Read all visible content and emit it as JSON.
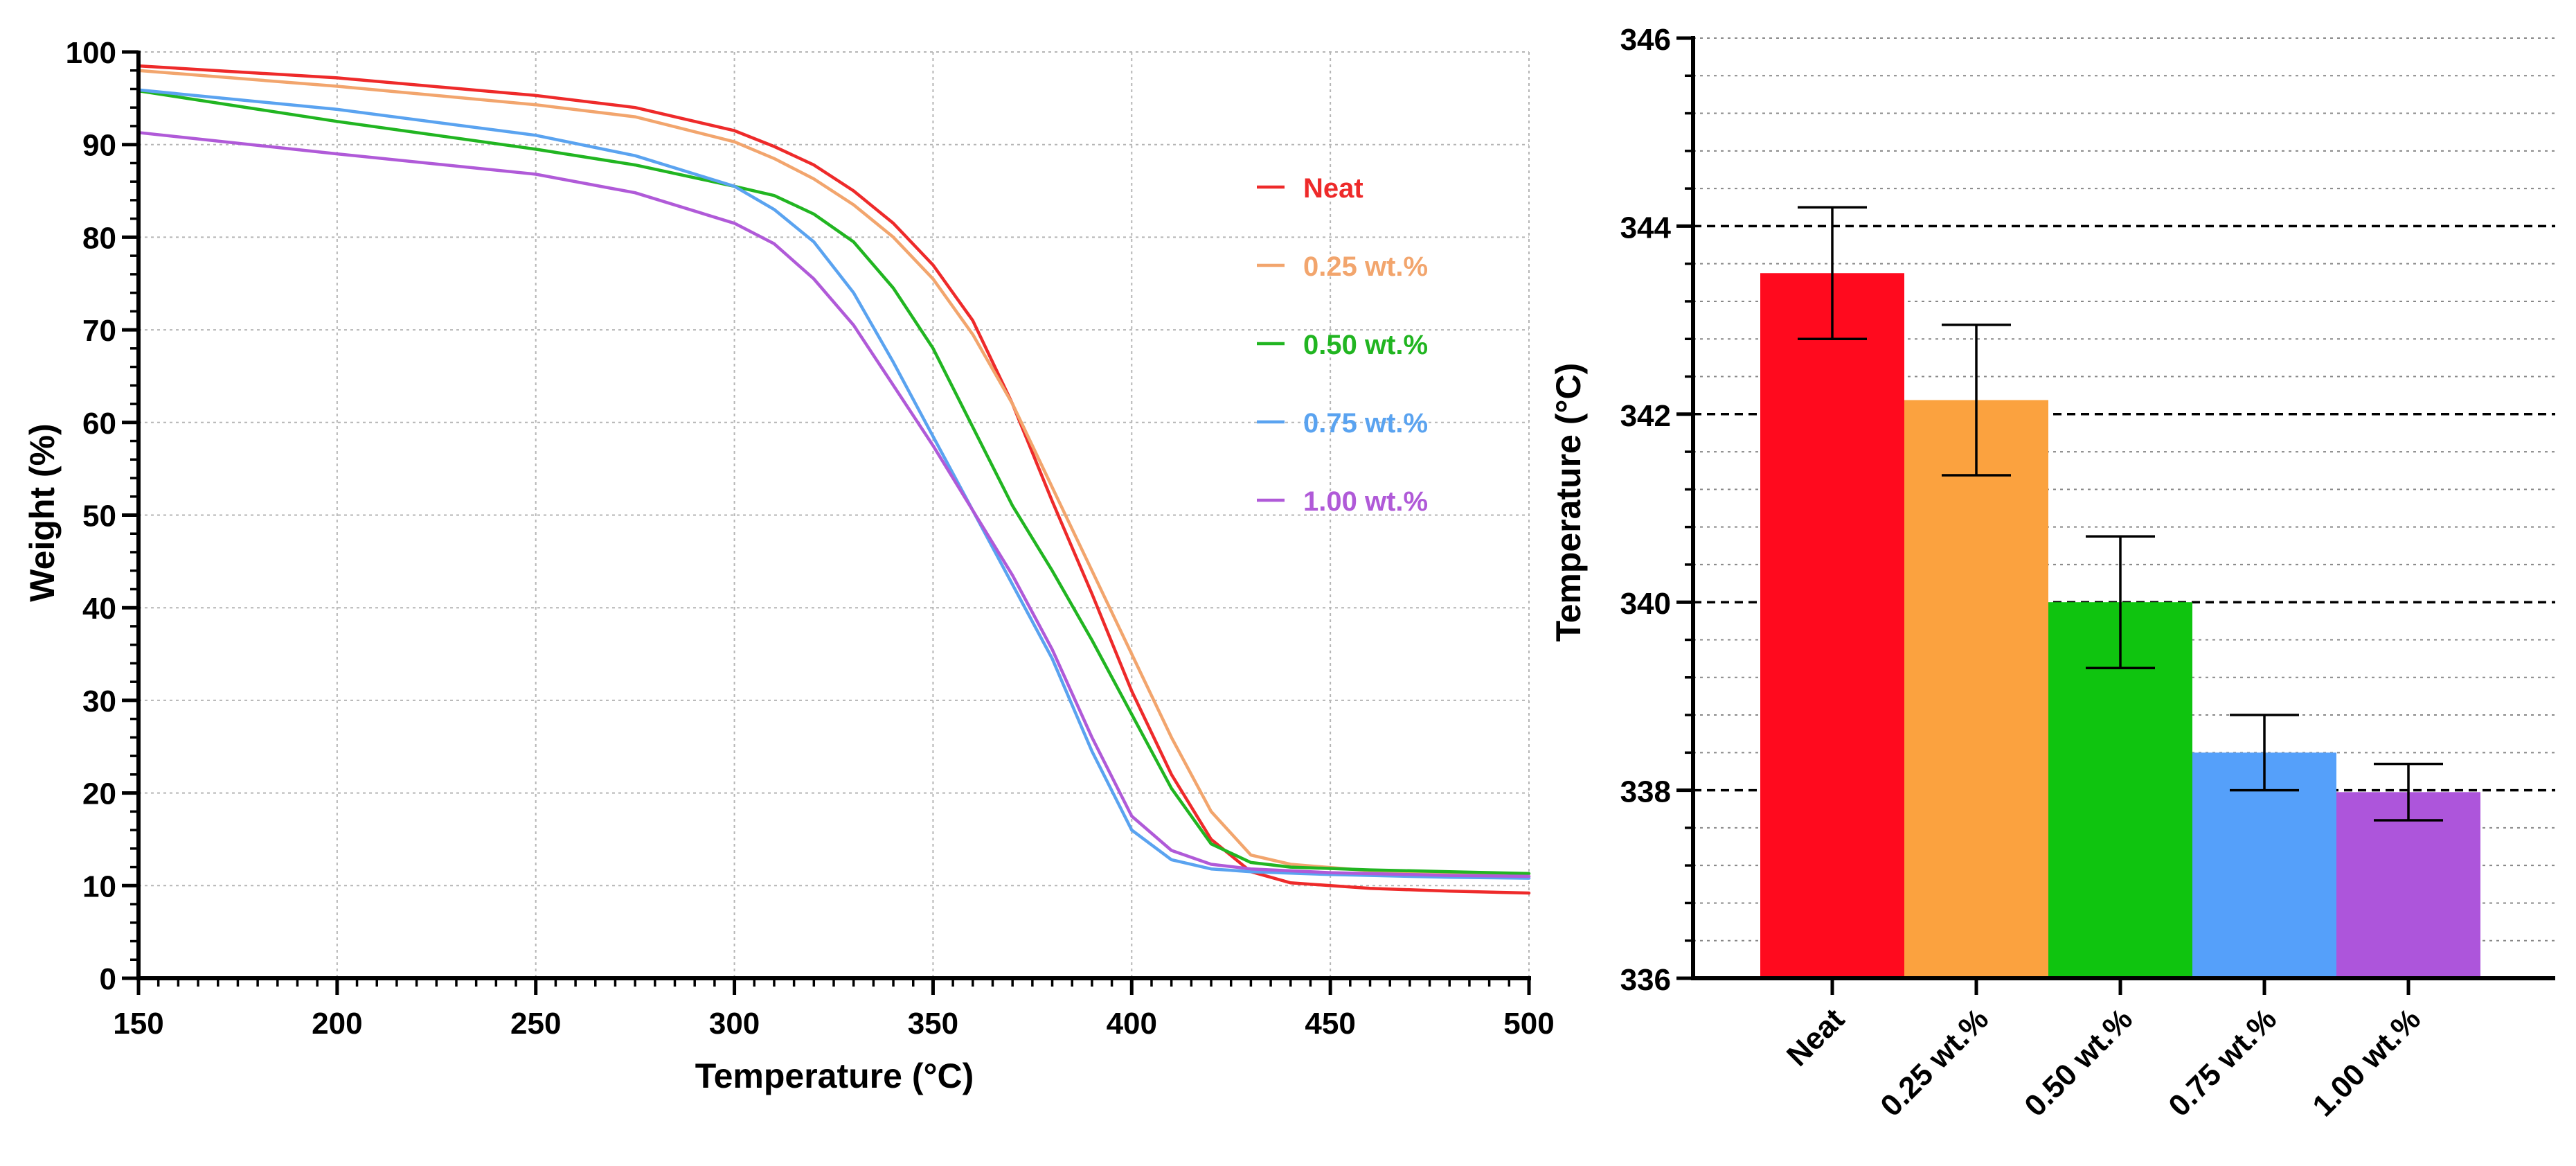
{
  "chart_data": [
    {
      "type": "line",
      "title": "",
      "xlabel": "Temperature (°C)",
      "ylabel": "Weight  (%)",
      "xlim": [
        150,
        500
      ],
      "ylim": [
        0,
        100
      ],
      "x_ticks": [
        150,
        200,
        250,
        300,
        350,
        400,
        450,
        500
      ],
      "y_ticks": [
        0,
        10,
        20,
        30,
        40,
        50,
        60,
        70,
        80,
        90,
        100
      ],
      "grid": true,
      "legend_position": "top-right",
      "series": [
        {
          "name": "Neat",
          "color": "#ee2a2a",
          "points": [
            [
              150,
              98.5
            ],
            [
              200,
              97.2
            ],
            [
              250,
              95.3
            ],
            [
              275,
              94.0
            ],
            [
              300,
              91.5
            ],
            [
              310,
              89.8
            ],
            [
              320,
              87.8
            ],
            [
              330,
              85.0
            ],
            [
              340,
              81.5
            ],
            [
              350,
              77.0
            ],
            [
              360,
              71.0
            ],
            [
              370,
              62.0
            ],
            [
              380,
              51.5
            ],
            [
              390,
              41.5
            ],
            [
              400,
              31.0
            ],
            [
              410,
              22.0
            ],
            [
              420,
              15.0
            ],
            [
              430,
              11.5
            ],
            [
              440,
              10.3
            ],
            [
              460,
              9.7
            ],
            [
              480,
              9.4
            ],
            [
              500,
              9.2
            ]
          ]
        },
        {
          "name": "0.25 wt.%",
          "color": "#f2a56d",
          "points": [
            [
              150,
              98.0
            ],
            [
              200,
              96.3
            ],
            [
              250,
              94.3
            ],
            [
              275,
              93.0
            ],
            [
              300,
              90.3
            ],
            [
              310,
              88.5
            ],
            [
              320,
              86.3
            ],
            [
              330,
              83.5
            ],
            [
              340,
              80.0
            ],
            [
              350,
              75.5
            ],
            [
              360,
              69.5
            ],
            [
              370,
              62.0
            ],
            [
              380,
              53.0
            ],
            [
              390,
              44.0
            ],
            [
              400,
              35.0
            ],
            [
              410,
              26.0
            ],
            [
              420,
              18.0
            ],
            [
              430,
              13.3
            ],
            [
              440,
              12.3
            ],
            [
              460,
              11.6
            ],
            [
              480,
              11.3
            ],
            [
              500,
              11.0
            ]
          ]
        },
        {
          "name": "0.50 wt.%",
          "color": "#21b521",
          "points": [
            [
              150,
              95.8
            ],
            [
              200,
              92.5
            ],
            [
              250,
              89.5
            ],
            [
              275,
              87.8
            ],
            [
              300,
              85.5
            ],
            [
              310,
              84.5
            ],
            [
              320,
              82.5
            ],
            [
              330,
              79.5
            ],
            [
              340,
              74.5
            ],
            [
              350,
              68.0
            ],
            [
              360,
              59.5
            ],
            [
              370,
              51.0
            ],
            [
              380,
              44.0
            ],
            [
              390,
              36.5
            ],
            [
              400,
              28.5
            ],
            [
              410,
              20.5
            ],
            [
              420,
              14.5
            ],
            [
              430,
              12.5
            ],
            [
              440,
              12.0
            ],
            [
              460,
              11.7
            ],
            [
              480,
              11.5
            ],
            [
              500,
              11.3
            ]
          ]
        },
        {
          "name": "0.75 wt.%",
          "color": "#5aa3f0",
          "points": [
            [
              150,
              95.9
            ],
            [
              200,
              93.8
            ],
            [
              250,
              91.0
            ],
            [
              275,
              88.8
            ],
            [
              300,
              85.5
            ],
            [
              310,
              83.0
            ],
            [
              320,
              79.5
            ],
            [
              330,
              74.0
            ],
            [
              340,
              66.5
            ],
            [
              350,
              58.5
            ],
            [
              360,
              50.5
            ],
            [
              370,
              42.5
            ],
            [
              380,
              34.5
            ],
            [
              390,
              24.5
            ],
            [
              400,
              16.0
            ],
            [
              410,
              12.8
            ],
            [
              420,
              11.8
            ],
            [
              430,
              11.5
            ],
            [
              450,
              11.2
            ],
            [
              480,
              10.9
            ],
            [
              500,
              10.8
            ]
          ]
        },
        {
          "name": "1.00 wt.%",
          "color": "#b05ad8",
          "points": [
            [
              150,
              91.3
            ],
            [
              200,
              89.0
            ],
            [
              250,
              86.8
            ],
            [
              275,
              84.8
            ],
            [
              300,
              81.5
            ],
            [
              310,
              79.3
            ],
            [
              320,
              75.5
            ],
            [
              330,
              70.5
            ],
            [
              340,
              64.0
            ],
            [
              350,
              57.5
            ],
            [
              360,
              50.5
            ],
            [
              370,
              43.5
            ],
            [
              380,
              35.5
            ],
            [
              390,
              26.0
            ],
            [
              400,
              17.5
            ],
            [
              410,
              13.8
            ],
            [
              420,
              12.3
            ],
            [
              430,
              11.8
            ],
            [
              450,
              11.4
            ],
            [
              480,
              11.1
            ],
            [
              500,
              11.0
            ]
          ]
        }
      ]
    },
    {
      "type": "bar",
      "title": "",
      "xlabel": "",
      "ylabel": "Temperature (°C)",
      "ylim": [
        336,
        346
      ],
      "y_ticks": [
        336,
        338,
        340,
        342,
        344,
        346
      ],
      "grid": true,
      "categories": [
        "Neat",
        "0.25 wt.%",
        "0.50 wt.%",
        "0.75 wt.%",
        "1.00 wt.%"
      ],
      "values": [
        343.5,
        342.15,
        340.0,
        338.4,
        337.98
      ],
      "errors": [
        0.7,
        0.8,
        0.7,
        0.4,
        0.3
      ],
      "colors": [
        "#ff0a1e",
        "#fba23f",
        "#0fc40f",
        "#55a0fa",
        "#ad55db"
      ]
    }
  ]
}
